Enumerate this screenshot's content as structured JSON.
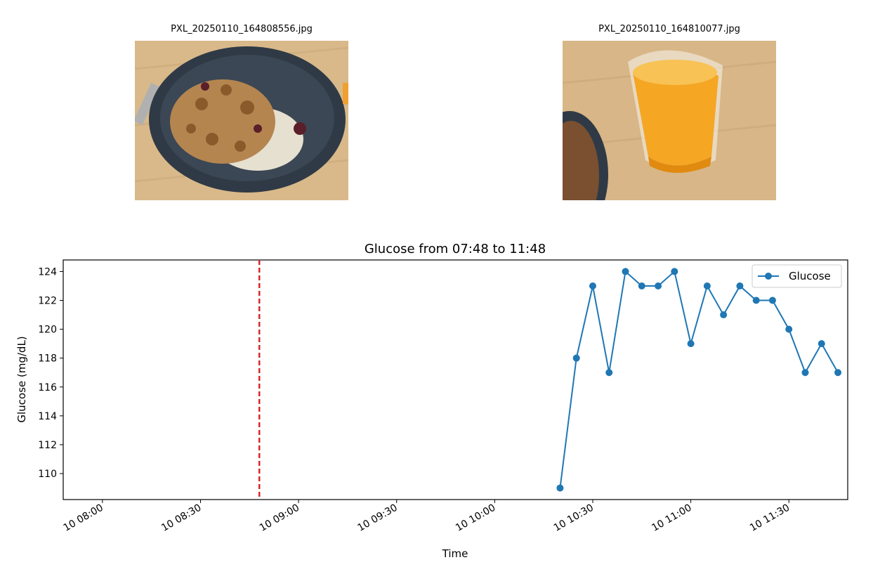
{
  "photos": [
    {
      "title": "PXL_20250110_164808556.jpg"
    },
    {
      "title": "PXL_20250110_164810077.jpg"
    }
  ],
  "colors": {
    "series": "#1f77b4",
    "marker_line": "#d62728"
  },
  "chart_data": {
    "type": "line",
    "title": "Glucose from 07:48 to 11:48",
    "xlabel": "Time",
    "ylabel": "Glucose (mg/dL)",
    "xlim": [
      "10 07:48",
      "11:48"
    ],
    "ylim": [
      108.2,
      124.8
    ],
    "xticks": [
      "10 08:00",
      "10 08:30",
      "10 09:00",
      "10 09:30",
      "10 10:00",
      "10 10:30",
      "10 11:00",
      "10 11:30"
    ],
    "yticks": [
      110,
      112,
      114,
      116,
      118,
      120,
      122,
      124
    ],
    "legend": {
      "position": "top-right"
    },
    "grid": false,
    "vertical_line": {
      "x": "08:48",
      "style": "dashed"
    },
    "series": [
      {
        "name": "Glucose",
        "x": [
          "10:20",
          "10:25",
          "10:30",
          "10:35",
          "10:40",
          "10:45",
          "10:50",
          "10:55",
          "11:00",
          "11:05",
          "11:10",
          "11:15",
          "11:20",
          "11:25",
          "11:30",
          "11:35",
          "11:40",
          "11:45"
        ],
        "values": [
          109,
          118,
          123,
          117,
          124,
          123,
          123,
          124,
          119,
          123,
          121,
          123,
          122,
          122,
          120,
          117,
          119,
          117
        ]
      }
    ]
  }
}
